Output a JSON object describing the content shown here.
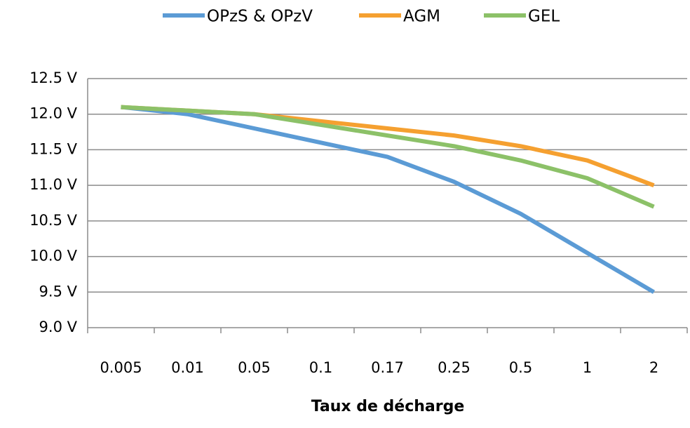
{
  "chart_data": {
    "type": "line",
    "xlabel": "Taux de décharge",
    "categories": [
      "0.005",
      "0.01",
      "0.05",
      "0.1",
      "0.17",
      "0.25",
      "0.5",
      "1",
      "2"
    ],
    "series": [
      {
        "name": "OPzS & OPzV",
        "color": "#5b9bd5",
        "values": [
          12.1,
          12.0,
          11.8,
          11.6,
          11.4,
          11.05,
          10.6,
          10.05,
          9.5
        ]
      },
      {
        "name": "AGM",
        "color": "#f5a030",
        "values": [
          12.1,
          12.05,
          12.0,
          11.9,
          11.8,
          11.7,
          11.55,
          11.35,
          11.0
        ]
      },
      {
        "name": "GEL",
        "color": "#8cc168",
        "values": [
          12.1,
          12.05,
          12.0,
          11.85,
          11.7,
          11.55,
          11.35,
          11.1,
          10.7
        ]
      }
    ],
    "ylim": [
      9.0,
      12.5
    ],
    "yticks": [
      {
        "value": 9.0,
        "label": "9.0 V"
      },
      {
        "value": 9.5,
        "label": "9.5 V"
      },
      {
        "value": 10.0,
        "label": "10.0 V"
      },
      {
        "value": 10.5,
        "label": "10.5 V"
      },
      {
        "value": 11.0,
        "label": "11.0 V"
      },
      {
        "value": 11.5,
        "label": "11.5 V"
      },
      {
        "value": 12.0,
        "label": "12.0 V"
      },
      {
        "value": 12.5,
        "label": "12.5 V"
      }
    ],
    "grid": true,
    "legend": "top"
  }
}
